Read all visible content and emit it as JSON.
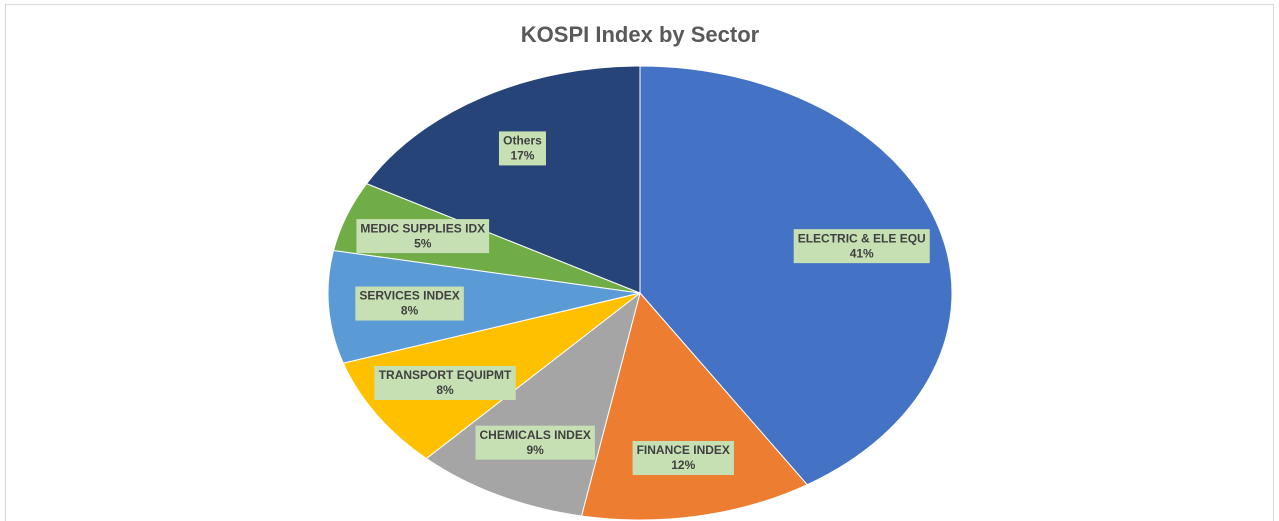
{
  "chart_data": {
    "type": "pie",
    "title": "KOSPI Index by Sector",
    "categories": [
      "ELECTRIC & ELE EQU",
      "FINANCE INDEX",
      "CHEMICALS INDEX",
      "TRANSPORT EQUIPMT",
      "SERVICES INDEX",
      "MEDIC SUPPLIES IDX",
      "Others"
    ],
    "values": [
      41,
      12,
      9,
      8,
      8,
      5,
      17
    ],
    "value_labels": [
      "41%",
      "12%",
      "9%",
      "8%",
      "8%",
      "5%",
      "17%"
    ],
    "colors": [
      "#4472c4",
      "#ed7d31",
      "#a5a5a5",
      "#ffc000",
      "#5b9bd5",
      "#70ad47",
      "#264478"
    ]
  }
}
